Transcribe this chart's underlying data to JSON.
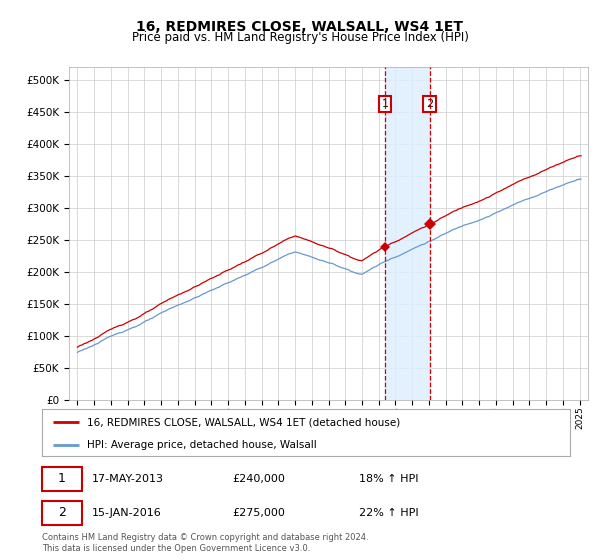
{
  "title": "16, REDMIRES CLOSE, WALSALL, WS4 1ET",
  "subtitle": "Price paid vs. HM Land Registry's House Price Index (HPI)",
  "legend_label_red": "16, REDMIRES CLOSE, WALSALL, WS4 1ET (detached house)",
  "legend_label_blue": "HPI: Average price, detached house, Walsall",
  "annotation1_date": "17-MAY-2013",
  "annotation1_price": "£240,000",
  "annotation1_hpi": "18% ↑ HPI",
  "annotation2_date": "15-JAN-2016",
  "annotation2_price": "£275,000",
  "annotation2_hpi": "22% ↑ HPI",
  "footnote": "Contains HM Land Registry data © Crown copyright and database right 2024.\nThis data is licensed under the Open Government Licence v3.0.",
  "ylim": [
    0,
    520000
  ],
  "yticks": [
    0,
    50000,
    100000,
    150000,
    200000,
    250000,
    300000,
    350000,
    400000,
    450000,
    500000
  ],
  "red_color": "#cc0000",
  "blue_color": "#6699cc",
  "highlight_color": "#ddeeff",
  "vline_color": "#cc0000",
  "background_color": "#ffffff",
  "grid_color": "#cccccc",
  "purchase1_x": 2013.37,
  "purchase1_y": 240000,
  "purchase2_x": 2016.04,
  "purchase2_y": 275000,
  "xlim_left": 1994.5,
  "xlim_right": 2025.5
}
